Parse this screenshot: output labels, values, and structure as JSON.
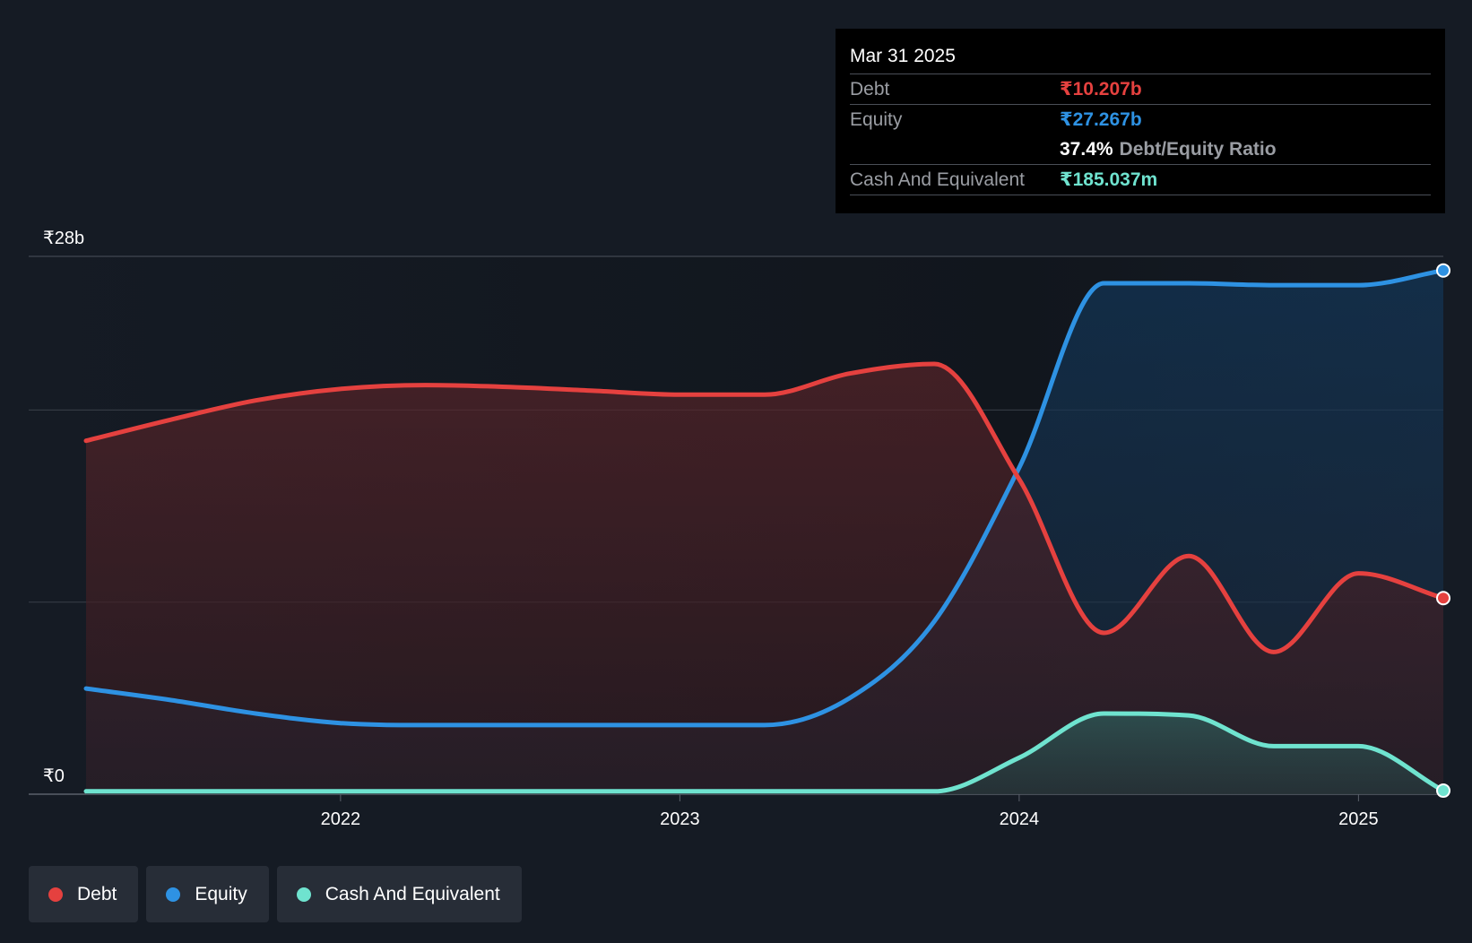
{
  "colors": {
    "background": "#151b24",
    "debt": "#e5413f",
    "equity": "#2e92e3",
    "cash": "#6fe3cf",
    "grid": "#3a4049"
  },
  "tooltip": {
    "date": "Mar 31 2025",
    "debt_label": "Debt",
    "debt_value": "₹10.207b",
    "equity_label": "Equity",
    "equity_value": "₹27.267b",
    "ratio_value": "37.4%",
    "ratio_label": "Debt/Equity Ratio",
    "cash_label": "Cash And Equivalent",
    "cash_value": "₹185.037m"
  },
  "legend": [
    {
      "label": "Debt",
      "color": "#e5413f"
    },
    {
      "label": "Equity",
      "color": "#2e92e3"
    },
    {
      "label": "Cash And Equivalent",
      "color": "#6fe3cf"
    }
  ],
  "chart_data": {
    "type": "area",
    "title": "",
    "xlabel": "",
    "ylabel": "",
    "y_unit": "₹ billions",
    "ylim": [
      0,
      28
    ],
    "y_tick_labels": [
      {
        "value": 0,
        "label": "₹0"
      },
      {
        "value": 28,
        "label": "₹28b"
      }
    ],
    "gridlines": [
      0,
      10,
      20,
      28
    ],
    "xlim": [
      2021.25,
      2025.25
    ],
    "x_ticks": [
      {
        "value": 2022,
        "label": "2022"
      },
      {
        "value": 2023,
        "label": "2023"
      },
      {
        "value": 2024,
        "label": "2024"
      },
      {
        "value": 2025,
        "label": "2025"
      }
    ],
    "x": [
      2021.25,
      2021.5,
      2021.75,
      2022.0,
      2022.25,
      2022.5,
      2022.75,
      2023.0,
      2023.25,
      2023.5,
      2023.75,
      2024.0,
      2024.25,
      2024.5,
      2024.75,
      2025.0,
      2025.25
    ],
    "series": [
      {
        "name": "Debt",
        "key": "debt",
        "values": [
          18.4,
          19.5,
          20.5,
          21.1,
          21.3,
          21.2,
          21.0,
          20.8,
          20.8,
          21.9,
          22.4,
          16.4,
          8.4,
          12.4,
          7.4,
          11.5,
          10.207
        ]
      },
      {
        "name": "Equity",
        "key": "equity",
        "values": [
          5.5,
          4.9,
          4.2,
          3.7,
          3.6,
          3.6,
          3.6,
          3.6,
          3.6,
          5.0,
          9.0,
          17.0,
          26.6,
          26.6,
          26.5,
          26.5,
          27.267
        ]
      },
      {
        "name": "Cash And Equivalent",
        "key": "cash",
        "values": [
          0.15,
          0.15,
          0.15,
          0.15,
          0.15,
          0.15,
          0.15,
          0.15,
          0.15,
          0.15,
          0.15,
          1.9,
          4.2,
          4.1,
          2.5,
          2.5,
          0.185
        ]
      }
    ]
  }
}
